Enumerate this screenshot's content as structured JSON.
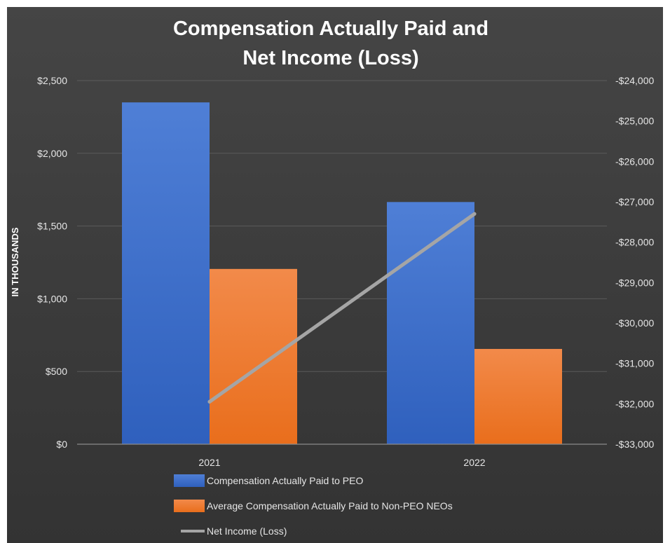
{
  "chart_data": {
    "type": "bar",
    "title_lines": [
      "Compensation Actually Paid and",
      "Net Income (Loss)"
    ],
    "ylabel": "IN THOUSANDS",
    "categories": [
      "2021",
      "2022"
    ],
    "ylim": [
      0,
      2500
    ],
    "y_ticks": [
      "$0",
      "$500",
      "$1,000",
      "$1,500",
      "$2,000",
      "$2,500"
    ],
    "y2lim": [
      -33000,
      -24000
    ],
    "y2_ticks": [
      "-$33,000",
      "-$32,000",
      "-$31,000",
      "-$30,000",
      "-$29,000",
      "-$28,000",
      "-$27,000",
      "-$26,000",
      "-$25,000",
      "-$24,000"
    ],
    "grid": true,
    "legend_position": "bottom",
    "series": [
      {
        "name": "Compensation Actually Paid to PEO",
        "type": "bar",
        "axis": "left",
        "color": "#4472c4",
        "values": [
          2350,
          1665
        ]
      },
      {
        "name": "Average Compensation Actually Paid to Non-PEO NEOs",
        "type": "bar",
        "axis": "left",
        "color": "#ed7d31",
        "values": [
          1205,
          655
        ]
      },
      {
        "name": "Net Income (Loss)",
        "type": "line",
        "axis": "right",
        "color": "#a5a5a5",
        "values": [
          -31950,
          -27300
        ]
      }
    ]
  }
}
